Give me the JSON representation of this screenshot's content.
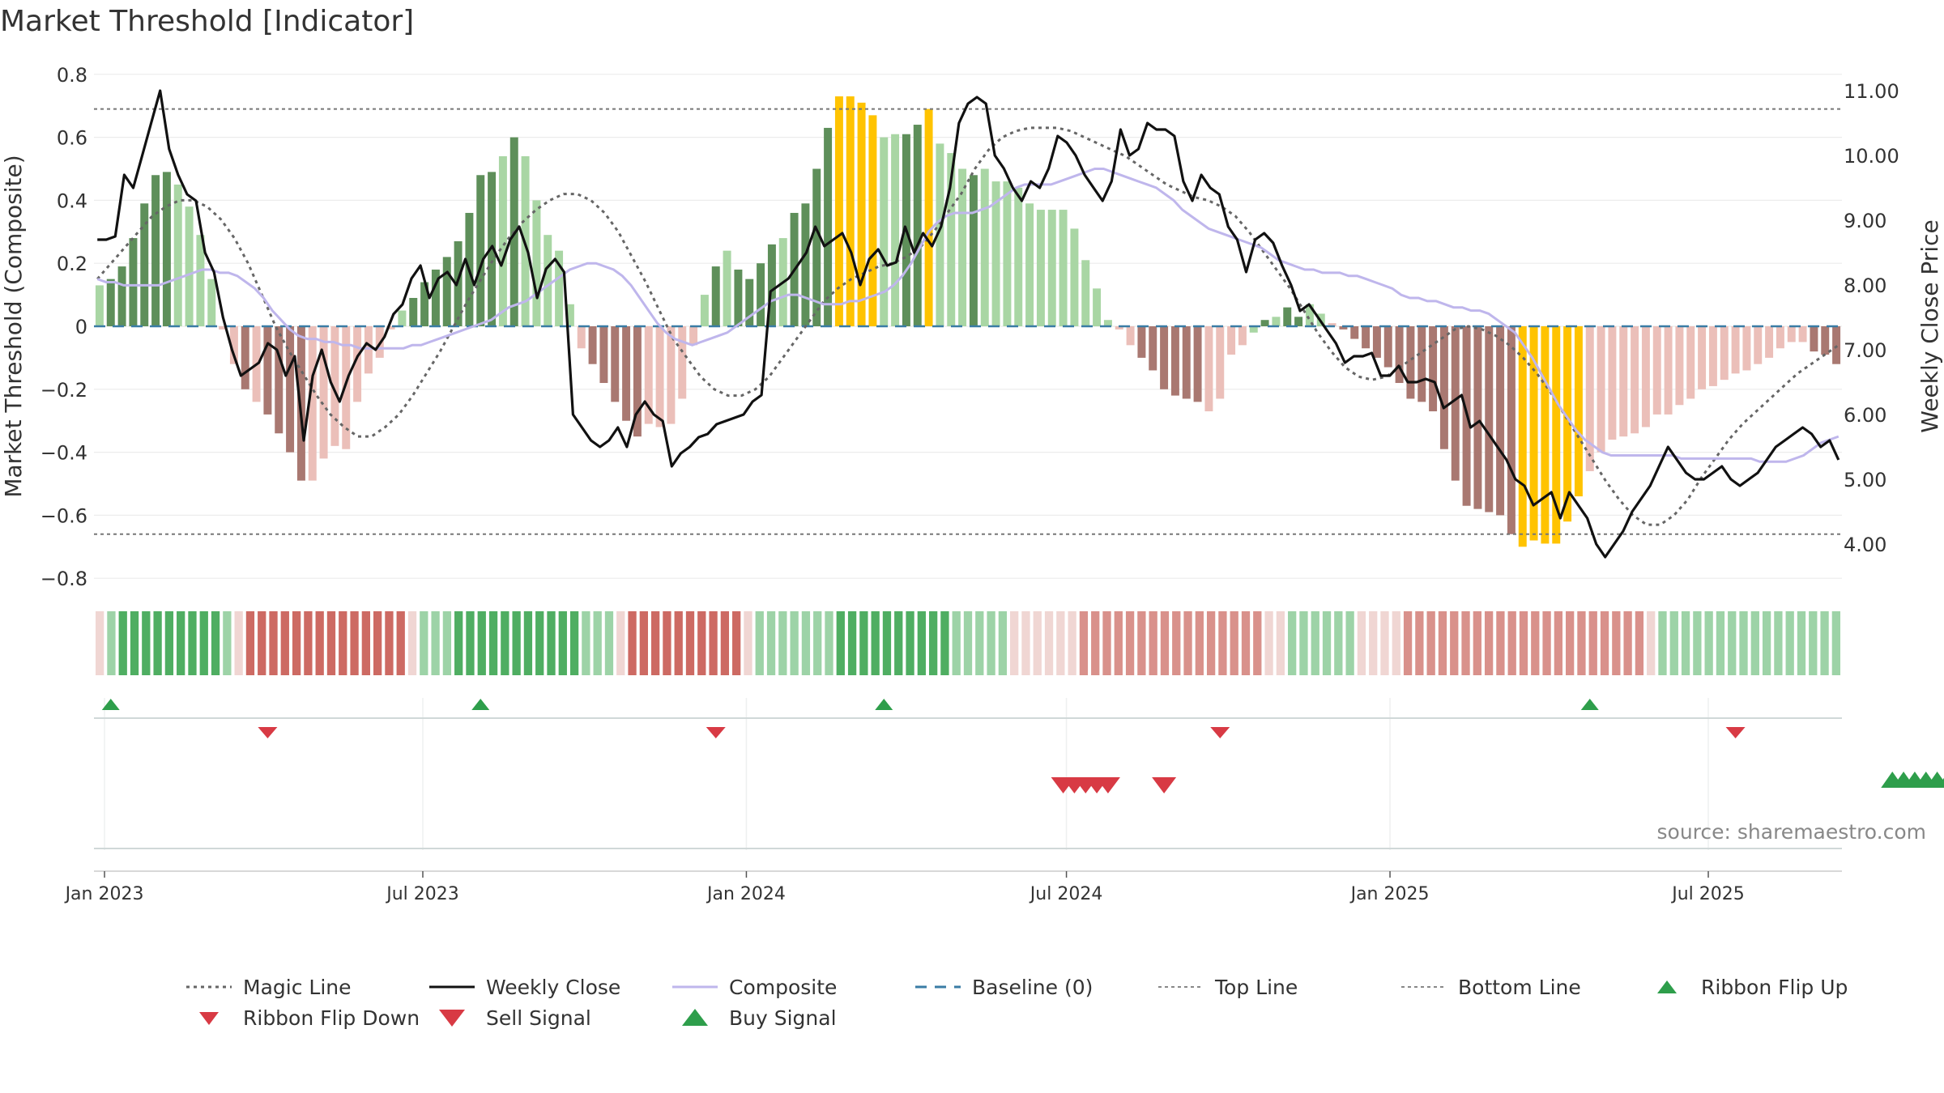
{
  "title": "Market Threshold [Indicator]",
  "source": "source: sharemaestro.com",
  "colors": {
    "bull_dark": "#5e8f5a",
    "bull_light": "#a9d6a4",
    "bear_dark": "#a97871",
    "bear_light": "#ebbfb9",
    "extreme": "#ffc300",
    "weekly_close": "#111111",
    "composite": "#bfb6ec",
    "magic_line": "#666666",
    "baseline": "#3a7ca5",
    "buy": "#2e9e4b",
    "sell": "#d83a44"
  },
  "chart_data": {
    "type": "bar",
    "title": "Market Threshold [Indicator]",
    "y_left_label": "Market Threshold (Composite)",
    "y_right_label": "Weekly Close Price",
    "y_left_ticks": [
      "0.8",
      "0.6",
      "0.4",
      "0.2",
      "0",
      "−0.2",
      "−0.4",
      "−0.6",
      "−0.8"
    ],
    "y_left_range": [
      -0.8,
      0.8
    ],
    "y_right_ticks": [
      "11.00",
      "10.00",
      "9.00",
      "8.00",
      "7.00",
      "6.00",
      "5.00",
      "4.00"
    ],
    "y_right_range": [
      3.45,
      11.2
    ],
    "x_ticks": [
      "Jan 2023",
      "Jul 2023",
      "Jan 2024",
      "Jul 2024",
      "Jan 2025",
      "Jul 2025"
    ],
    "x_range": [
      "2022-12-26",
      "2025-09-15"
    ],
    "top_line": 0.69,
    "bottom_line": -0.66,
    "baseline": 0,
    "grid": true,
    "legend_position": "bottom",
    "composite_bars": [
      0.13,
      0.15,
      0.19,
      0.28,
      0.39,
      0.48,
      0.49,
      0.45,
      0.38,
      0.29,
      0.15,
      -0.01,
      -0.12,
      -0.2,
      -0.24,
      -0.28,
      -0.34,
      -0.4,
      -0.49,
      -0.49,
      -0.42,
      -0.38,
      -0.39,
      -0.24,
      -0.15,
      -0.1,
      -0.01,
      0.05,
      0.09,
      0.14,
      0.18,
      0.22,
      0.27,
      0.36,
      0.48,
      0.49,
      0.54,
      0.6,
      0.54,
      0.4,
      0.29,
      0.24,
      0.07,
      -0.07,
      -0.12,
      -0.18,
      -0.24,
      -0.3,
      -0.35,
      -0.31,
      -0.32,
      -0.31,
      -0.23,
      -0.06,
      0.1,
      0.19,
      0.24,
      0.18,
      0.15,
      0.2,
      0.26,
      0.28,
      0.36,
      0.39,
      0.5,
      0.63,
      0.73,
      0.73,
      0.71,
      0.67,
      0.6,
      0.61,
      0.61,
      0.64,
      0.69,
      0.58,
      0.55,
      0.5,
      0.48,
      0.5,
      0.46,
      0.46,
      0.44,
      0.39,
      0.37,
      0.37,
      0.37,
      0.31,
      0.21,
      0.12,
      0.02,
      -0.01,
      -0.06,
      -0.1,
      -0.14,
      -0.2,
      -0.22,
      -0.23,
      -0.24,
      -0.27,
      -0.23,
      -0.09,
      -0.06,
      -0.02,
      0.02,
      0.03,
      0.06,
      0.03,
      0.07,
      0.04,
      0.01,
      -0.01,
      -0.04,
      -0.07,
      -0.1,
      -0.13,
      -0.18,
      -0.23,
      -0.24,
      -0.27,
      -0.39,
      -0.49,
      -0.57,
      -0.58,
      -0.59,
      -0.6,
      -0.66,
      -0.7,
      -0.68,
      -0.69,
      -0.69,
      -0.62,
      -0.54,
      -0.46,
      -0.4,
      -0.36,
      -0.35,
      -0.34,
      -0.32,
      -0.28,
      -0.28,
      -0.25,
      -0.23,
      -0.2,
      -0.19,
      -0.17,
      -0.15,
      -0.14,
      -0.12,
      -0.1,
      -0.07,
      -0.05,
      -0.05,
      -0.08,
      -0.09,
      -0.12
    ],
    "bar_shades": [
      "bl",
      "bd",
      "bd",
      "bd",
      "bd",
      "bd",
      "bd",
      "bl",
      "bl",
      "bl",
      "bl",
      "rl",
      "rl",
      "rd",
      "rl",
      "rd",
      "rd",
      "rd",
      "rd",
      "rl",
      "rl",
      "rl",
      "rl",
      "rl",
      "rl",
      "rl",
      "rl",
      "bl",
      "bd",
      "bd",
      "bd",
      "bd",
      "bd",
      "bd",
      "bd",
      "bd",
      "bl",
      "bd",
      "bl",
      "bl",
      "bl",
      "bl",
      "bl",
      "rl",
      "rd",
      "rd",
      "rd",
      "rd",
      "rd",
      "rl",
      "rl",
      "rl",
      "rl",
      "rl",
      "bl",
      "bd",
      "bl",
      "bd",
      "bd",
      "bd",
      "bd",
      "bl",
      "bd",
      "bd",
      "bd",
      "bd",
      "ex",
      "ex",
      "ex",
      "ex",
      "bl",
      "bl",
      "bd",
      "bd",
      "ex",
      "bl",
      "bl",
      "bl",
      "bd",
      "bl",
      "bl",
      "bl",
      "bl",
      "bl",
      "bl",
      "bl",
      "bl",
      "bl",
      "bl",
      "bl",
      "bl",
      "rl",
      "rl",
      "rd",
      "rd",
      "rd",
      "rd",
      "rd",
      "rd",
      "rl",
      "rl",
      "rl",
      "rl",
      "bl",
      "bd",
      "bl",
      "bd",
      "bd",
      "bl",
      "bl",
      "rl",
      "rd",
      "rd",
      "rd",
      "rd",
      "rd",
      "rd",
      "rd",
      "rd",
      "rd",
      "rd",
      "rd",
      "rd",
      "rd",
      "rd",
      "rd",
      "rd",
      "ex",
      "ex",
      "ex",
      "ex",
      "ex",
      "ex",
      "rl",
      "rl",
      "rl",
      "rl",
      "rl",
      "rl",
      "rl",
      "rl",
      "rl",
      "rl",
      "rl",
      "rl",
      "rl",
      "rl",
      "rl",
      "rl",
      "rl",
      "rl",
      "rl",
      "rl",
      "rd",
      "rd",
      "rd"
    ],
    "weekly_close": [
      8.7,
      8.7,
      8.75,
      9.7,
      9.5,
      10.0,
      10.5,
      11.0,
      10.1,
      9.7,
      9.4,
      9.3,
      8.5,
      8.2,
      7.5,
      7.0,
      6.6,
      6.7,
      6.8,
      7.1,
      7.0,
      6.6,
      6.9,
      5.6,
      6.6,
      7.0,
      6.5,
      6.2,
      6.6,
      6.9,
      7.1,
      7.0,
      7.2,
      7.55,
      7.7,
      8.1,
      8.3,
      7.8,
      8.1,
      8.2,
      8.0,
      8.4,
      8.0,
      8.4,
      8.6,
      8.3,
      8.7,
      8.9,
      8.5,
      7.8,
      8.25,
      8.4,
      8.2,
      6.0,
      5.8,
      5.6,
      5.5,
      5.6,
      5.8,
      5.5,
      6.0,
      6.2,
      6.0,
      5.9,
      5.2,
      5.4,
      5.5,
      5.65,
      5.7,
      5.85,
      5.9,
      5.95,
      6.0,
      6.2,
      6.3,
      7.9,
      8.0,
      8.1,
      8.3,
      8.5,
      8.9,
      8.6,
      8.7,
      8.8,
      8.5,
      8.0,
      8.4,
      8.55,
      8.3,
      8.35,
      8.9,
      8.5,
      8.8,
      8.6,
      8.9,
      9.5,
      10.5,
      10.8,
      10.9,
      10.8,
      10.0,
      9.8,
      9.5,
      9.3,
      9.6,
      9.5,
      9.8,
      10.3,
      10.2,
      10.0,
      9.7,
      9.5,
      9.3,
      9.6,
      10.4,
      10.0,
      10.1,
      10.5,
      10.4,
      10.4,
      10.3,
      9.6,
      9.3,
      9.7,
      9.5,
      9.4,
      8.9,
      8.7,
      8.2,
      8.7,
      8.8,
      8.65,
      8.3,
      8.0,
      7.6,
      7.7,
      7.5,
      7.3,
      7.1,
      6.8,
      6.9,
      6.9,
      6.95,
      6.6,
      6.6,
      6.75,
      6.5,
      6.5,
      6.55,
      6.5,
      6.1,
      6.2,
      6.3,
      5.8,
      5.9,
      5.7,
      5.5,
      5.3,
      5.0,
      4.9,
      4.6,
      4.7,
      4.8,
      4.4,
      4.8,
      4.6,
      4.4,
      4.0,
      3.8,
      4.0,
      4.2,
      4.5,
      4.7,
      4.9,
      5.2,
      5.5,
      5.3,
      5.1,
      5.0,
      5.0,
      5.1,
      5.2,
      5.0,
      4.9,
      5.0,
      5.1,
      5.3,
      5.5,
      5.6,
      5.7,
      5.8,
      5.7,
      5.5,
      5.6,
      5.3
    ],
    "composite_line": [
      0.15,
      0.14,
      0.14,
      0.13,
      0.13,
      0.13,
      0.13,
      0.13,
      0.14,
      0.15,
      0.16,
      0.17,
      0.18,
      0.18,
      0.17,
      0.17,
      0.16,
      0.14,
      0.12,
      0.09,
      0.05,
      0.02,
      -0.01,
      -0.03,
      -0.04,
      -0.04,
      -0.05,
      -0.05,
      -0.06,
      -0.06,
      -0.07,
      -0.07,
      -0.07,
      -0.07,
      -0.07,
      -0.07,
      -0.06,
      -0.06,
      -0.05,
      -0.04,
      -0.03,
      -0.02,
      -0.01,
      0.0,
      0.01,
      0.02,
      0.04,
      0.06,
      0.07,
      0.08,
      0.1,
      0.12,
      0.14,
      0.16,
      0.18,
      0.19,
      0.2,
      0.2,
      0.19,
      0.18,
      0.16,
      0.13,
      0.09,
      0.05,
      0.01,
      -0.02,
      -0.04,
      -0.05,
      -0.06,
      -0.05,
      -0.04,
      -0.03,
      -0.02,
      0.0,
      0.02,
      0.04,
      0.06,
      0.08,
      0.09,
      0.1,
      0.1,
      0.09,
      0.08,
      0.07,
      0.07,
      0.07,
      0.08,
      0.08,
      0.09,
      0.1,
      0.11,
      0.13,
      0.16,
      0.2,
      0.25,
      0.3,
      0.33,
      0.35,
      0.36,
      0.36,
      0.36,
      0.37,
      0.38,
      0.4,
      0.42,
      0.44,
      0.45,
      0.45,
      0.45,
      0.45,
      0.46,
      0.47,
      0.48,
      0.49,
      0.5,
      0.5,
      0.49,
      0.48,
      0.47,
      0.46,
      0.45,
      0.44,
      0.42,
      0.4,
      0.37,
      0.35,
      0.33,
      0.31,
      0.3,
      0.29,
      0.28,
      0.27,
      0.26,
      0.25,
      0.23,
      0.21,
      0.2,
      0.19,
      0.18,
      0.18,
      0.17,
      0.17,
      0.17,
      0.16,
      0.16,
      0.15,
      0.14,
      0.13,
      0.12,
      0.1,
      0.09,
      0.09,
      0.08,
      0.08,
      0.07,
      0.06,
      0.06,
      0.05,
      0.05,
      0.04,
      0.02,
      0.0,
      -0.02,
      -0.06,
      -0.1,
      -0.15,
      -0.2,
      -0.25,
      -0.29,
      -0.33,
      -0.36,
      -0.38,
      -0.4,
      -0.41,
      -0.41,
      -0.41,
      -0.41,
      -0.41,
      -0.41,
      -0.41,
      -0.41,
      -0.42,
      -0.42,
      -0.42,
      -0.42,
      -0.42,
      -0.42,
      -0.42,
      -0.42,
      -0.42,
      -0.43,
      -0.43,
      -0.43,
      -0.43,
      -0.42,
      -0.41,
      -0.39,
      -0.37,
      -0.36,
      -0.35
    ],
    "magic_line": [
      0.15,
      0.2,
      0.25,
      0.3,
      0.35,
      0.38,
      0.4,
      0.4,
      0.38,
      0.34,
      0.28,
      0.2,
      0.1,
      0.0,
      -0.08,
      -0.15,
      -0.22,
      -0.28,
      -0.32,
      -0.35,
      -0.35,
      -0.32,
      -0.28,
      -0.22,
      -0.15,
      -0.08,
      0.0,
      0.08,
      0.15,
      0.22,
      0.28,
      0.33,
      0.37,
      0.4,
      0.42,
      0.42,
      0.4,
      0.36,
      0.3,
      0.22,
      0.14,
      0.05,
      -0.04,
      -0.1,
      -0.16,
      -0.2,
      -0.22,
      -0.22,
      -0.2,
      -0.16,
      -0.1,
      -0.04,
      0.02,
      0.08,
      0.12,
      0.15,
      0.17,
      0.19,
      0.2,
      0.22,
      0.25,
      0.3,
      0.36,
      0.42,
      0.5,
      0.56,
      0.6,
      0.62,
      0.63,
      0.63,
      0.63,
      0.62,
      0.6,
      0.58,
      0.56,
      0.54,
      0.51,
      0.48,
      0.45,
      0.43,
      0.41,
      0.4,
      0.38,
      0.35,
      0.3,
      0.24,
      0.18,
      0.12,
      0.05,
      -0.02,
      -0.08,
      -0.13,
      -0.16,
      -0.17,
      -0.16,
      -0.13,
      -0.1,
      -0.07,
      -0.04,
      -0.01,
      0.0,
      -0.01,
      -0.03,
      -0.06,
      -0.1,
      -0.15,
      -0.21,
      -0.28,
      -0.35,
      -0.42,
      -0.49,
      -0.55,
      -0.6,
      -0.63,
      -0.63,
      -0.6,
      -0.55,
      -0.48,
      -0.42,
      -0.36,
      -0.31,
      -0.27,
      -0.23,
      -0.19,
      -0.15,
      -0.12,
      -0.09,
      -0.06
    ],
    "ribbon_shades": [
      "rl",
      "bl",
      "bd",
      "bd",
      "bd",
      "bd",
      "bd",
      "bd",
      "bd",
      "bd",
      "bd",
      "bl",
      "rl",
      "rd",
      "rd",
      "rd",
      "rd",
      "rd",
      "rd",
      "rd",
      "rd",
      "rd",
      "rd",
      "rd",
      "rd",
      "rd",
      "rd",
      "rl",
      "bl",
      "bl",
      "bl",
      "bd",
      "bd",
      "bd",
      "bd",
      "bd",
      "bd",
      "bd",
      "bd",
      "bd",
      "bd",
      "bd",
      "bl",
      "bl",
      "bl",
      "rl",
      "rd",
      "rd",
      "rd",
      "rd",
      "rd",
      "rd",
      "rd",
      "rd",
      "rd",
      "rd",
      "rl",
      "bl",
      "bl",
      "bl",
      "bl",
      "bl",
      "bl",
      "bl",
      "bd",
      "bd",
      "bd",
      "bd",
      "bd",
      "bd",
      "bd",
      "bd",
      "bd",
      "bd",
      "bl",
      "bl",
      "bl",
      "bl",
      "bl",
      "rl",
      "rl",
      "rl",
      "rl",
      "rl",
      "rl",
      "rm",
      "rm",
      "rm",
      "rm",
      "rm",
      "rm",
      "rm",
      "rm",
      "rm",
      "rm",
      "rm",
      "rm",
      "rm",
      "rm",
      "rm",
      "rm",
      "rl",
      "rl",
      "bl",
      "bl",
      "bl",
      "bl",
      "bl",
      "bl",
      "rl",
      "rl",
      "rl",
      "rl",
      "rm",
      "rm",
      "rm",
      "rm",
      "rm",
      "rm",
      "rm",
      "rm",
      "rm",
      "rm",
      "rm",
      "rm",
      "rm",
      "rm",
      "rm",
      "rm",
      "rm",
      "rm",
      "rm",
      "rm",
      "rm",
      "rl",
      "bl",
      "bl",
      "bl",
      "bl",
      "bl",
      "bl",
      "bl",
      "bl",
      "bl",
      "bl",
      "bl",
      "bl",
      "bl",
      "bl",
      "bl",
      "bl"
    ],
    "ribbon_flip_up_weeks": [
      1,
      34,
      70,
      133,
      172
    ],
    "ribbon_flip_down_weeks": [
      15,
      55,
      100,
      146
    ],
    "sell_signal_weeks": [
      86,
      87,
      88,
      89,
      90,
      95
    ],
    "buy_signal_weeks": [
      160,
      161,
      162,
      163,
      164,
      165
    ],
    "series": [
      {
        "name": "Magic Line"
      },
      {
        "name": "Weekly Close"
      },
      {
        "name": "Composite"
      },
      {
        "name": "Baseline (0)"
      },
      {
        "name": "Top Line"
      },
      {
        "name": "Bottom Line"
      },
      {
        "name": "Ribbon Flip Up"
      },
      {
        "name": "Ribbon Flip Down"
      },
      {
        "name": "Sell Signal"
      },
      {
        "name": "Buy Signal"
      }
    ]
  }
}
